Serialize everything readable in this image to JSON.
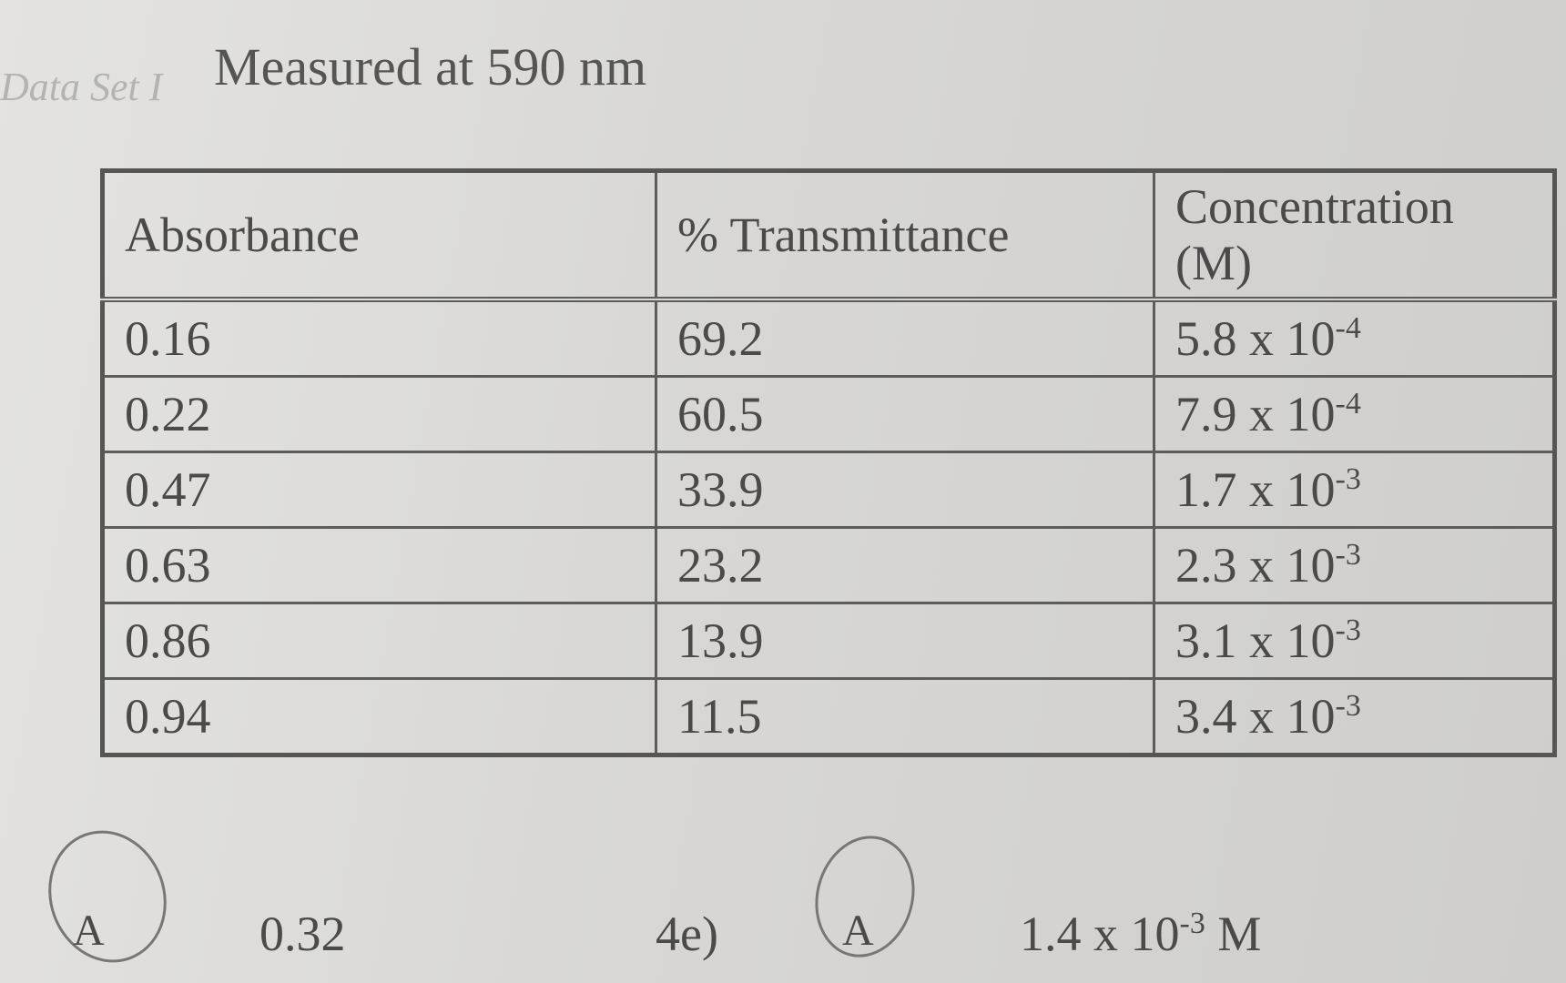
{
  "header": {
    "label": "Data Set I",
    "title": "Measured at 590 nm"
  },
  "table": {
    "columns": [
      "Absorbance",
      "% Transmittance",
      "Concentration (M)"
    ],
    "rows": [
      [
        "0.16",
        "69.2",
        {
          "base": "5.8 x 10",
          "exponent": "-4"
        }
      ],
      [
        "0.22",
        "60.5",
        {
          "base": "7.9 x 10",
          "exponent": "-4"
        }
      ],
      [
        "0.47",
        "33.9",
        {
          "base": "1.7 x 10",
          "exponent": "-3"
        }
      ],
      [
        "0.63",
        "23.2",
        {
          "base": "2.3 x 10",
          "exponent": "-3"
        }
      ],
      [
        "0.86",
        "13.9",
        {
          "base": "3.1 x 10",
          "exponent": "-3"
        }
      ],
      [
        "0.94",
        "11.5",
        {
          "base": "3.4 x 10",
          "exponent": "-3"
        }
      ]
    ]
  },
  "answers": [
    {
      "mark": "A",
      "text": "0.32"
    },
    {
      "question": "4e)",
      "mark": "A",
      "base": "1.4 x 10",
      "exponent": "-3",
      "unit": "M"
    }
  ]
}
